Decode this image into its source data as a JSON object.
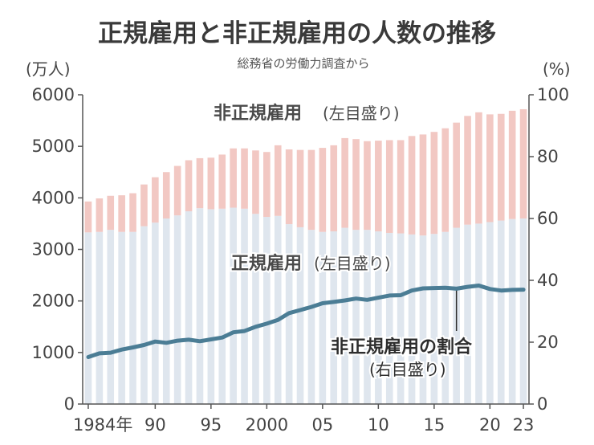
{
  "chart_data": {
    "type": "bar",
    "title": "正規雇用と非正規雇用の人数の推移",
    "subtitle": "総務省の労働力調査から",
    "left_unit": "(万人)",
    "right_unit": "(%)",
    "ylim": [
      0,
      6000
    ],
    "y2lim": [
      0,
      100
    ],
    "yticks": [
      "0",
      "1000",
      "2000",
      "3000",
      "4000",
      "5000",
      "6000"
    ],
    "y2ticks": [
      "0",
      "20",
      "40",
      "60",
      "80",
      "100"
    ],
    "years": [
      1984,
      1985,
      1986,
      1987,
      1988,
      1989,
      1990,
      1991,
      1992,
      1993,
      1994,
      1995,
      1996,
      1997,
      1998,
      1999,
      2000,
      2001,
      2002,
      2003,
      2004,
      2005,
      2006,
      2007,
      2008,
      2009,
      2010,
      2011,
      2012,
      2013,
      2014,
      2015,
      2016,
      2017,
      2018,
      2019,
      2020,
      2021,
      2022,
      2023
    ],
    "xtick_labels": [
      {
        "year": 1984,
        "text": "1984年"
      },
      {
        "year": 1990,
        "text": "90"
      },
      {
        "year": 1995,
        "text": "95"
      },
      {
        "year": 2000,
        "text": "2000"
      },
      {
        "year": 2005,
        "text": "05"
      },
      {
        "year": 2010,
        "text": "10"
      },
      {
        "year": 2015,
        "text": "15"
      },
      {
        "year": 2020,
        "text": "20"
      },
      {
        "year": 2023,
        "text": "23"
      }
    ],
    "series": [
      {
        "name": "正規雇用",
        "axis": "left",
        "color": "#dfe6ee",
        "values": [
          3330,
          3340,
          3380,
          3340,
          3340,
          3450,
          3520,
          3600,
          3660,
          3740,
          3800,
          3780,
          3790,
          3810,
          3790,
          3690,
          3630,
          3650,
          3490,
          3430,
          3380,
          3340,
          3350,
          3420,
          3380,
          3380,
          3350,
          3320,
          3310,
          3290,
          3270,
          3300,
          3340,
          3420,
          3480,
          3500,
          3530,
          3560,
          3590,
          3600
        ]
      },
      {
        "name": "非正規雇用",
        "axis": "left",
        "color": "#f2c8c3",
        "values": [
          600,
          650,
          660,
          710,
          750,
          810,
          880,
          900,
          960,
          990,
          970,
          1000,
          1050,
          1150,
          1170,
          1230,
          1260,
          1370,
          1450,
          1500,
          1550,
          1630,
          1670,
          1740,
          1760,
          1720,
          1760,
          1800,
          1810,
          1910,
          1960,
          1980,
          2010,
          2040,
          2110,
          2160,
          2090,
          2070,
          2100,
          2120
        ]
      },
      {
        "name": "非正規雇用の割合",
        "axis": "right",
        "color": "#4b7d95",
        "values": [
          15.2,
          16.4,
          16.6,
          17.6,
          18.3,
          19.1,
          20.2,
          19.8,
          20.5,
          20.8,
          20.3,
          20.9,
          21.5,
          23.2,
          23.6,
          25.0,
          26.0,
          27.2,
          29.4,
          30.4,
          31.4,
          32.6,
          33.0,
          33.5,
          34.1,
          33.7,
          34.4,
          35.1,
          35.2,
          36.7,
          37.4,
          37.5,
          37.6,
          37.3,
          37.9,
          38.3,
          37.2,
          36.7,
          36.9,
          37.0
        ]
      }
    ],
    "annotations": {
      "irregular_label": "非正規雇用",
      "irregular_note": "(左目盛り)",
      "regular_label": "正規雇用",
      "regular_note": "(左目盛り)",
      "ratio_label": "非正規雇用の割合",
      "ratio_note": "(右目盛り)"
    }
  }
}
